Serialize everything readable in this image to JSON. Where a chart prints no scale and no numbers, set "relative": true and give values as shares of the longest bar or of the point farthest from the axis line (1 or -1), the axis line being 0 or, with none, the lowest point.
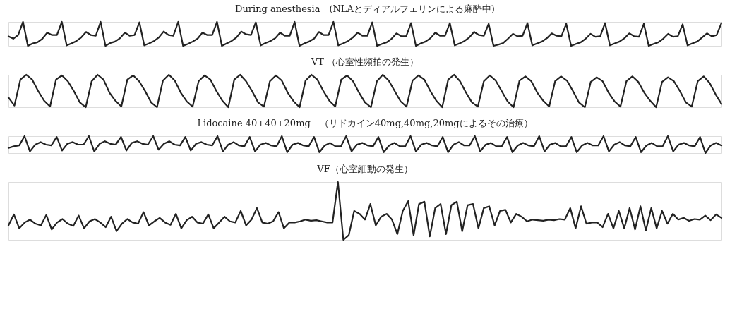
{
  "chart_data": [
    {
      "type": "line",
      "title": "During anesthesia　(NLAとディアルフェリンによる麻酔中)",
      "relative": true,
      "categories": [
        null,
        null,
        null,
        null,
        null,
        null,
        null,
        null,
        null,
        null,
        null,
        null,
        null,
        null,
        null,
        null,
        null,
        null,
        null,
        null,
        null,
        null,
        null,
        null,
        null,
        null,
        null,
        null,
        null,
        null,
        null,
        null,
        null,
        null,
        null,
        null,
        null,
        null,
        null,
        null,
        null,
        null,
        null,
        null,
        null,
        null,
        null,
        null,
        null,
        null,
        null,
        null,
        null,
        null,
        null,
        null,
        null,
        null,
        null,
        null,
        null,
        null,
        null,
        null,
        null,
        null,
        null,
        null,
        null,
        null,
        null,
        null,
        null,
        null,
        null,
        null,
        null,
        null,
        null,
        null,
        null,
        null,
        null,
        null,
        null,
        null,
        null,
        null,
        null,
        null,
        null,
        null,
        null,
        null,
        null,
        null,
        null,
        null,
        null,
        null,
        null,
        null,
        null,
        null,
        null,
        null,
        null,
        null,
        null,
        null,
        null,
        null,
        null,
        null,
        null,
        null,
        null,
        null,
        null,
        null,
        null,
        null,
        null,
        null,
        null,
        null,
        null,
        null,
        null,
        null,
        null,
        null,
        null,
        null,
        null,
        null,
        null,
        null,
        null,
        null,
        null,
        null,
        null,
        null,
        null,
        null,
        null,
        null
      ],
      "series": [
        {
          "color": "#222222",
          "values": [
            0.4,
            0.3,
            0.45,
            1.0,
            0.0,
            0.1,
            0.15,
            0.3,
            0.55,
            0.45,
            0.45,
            1.0,
            0.02,
            0.1,
            0.2,
            0.35,
            0.58,
            0.45,
            0.42,
            1.0,
            0.0,
            0.12,
            0.18,
            0.32,
            0.55,
            0.42,
            0.45,
            0.98,
            0.02,
            0.1,
            0.2,
            0.35,
            0.6,
            0.45,
            0.42,
            1.0,
            0.0,
            0.08,
            0.18,
            0.3,
            0.55,
            0.45,
            0.45,
            1.0,
            0.0,
            0.1,
            0.2,
            0.35,
            0.6,
            0.48,
            0.45,
            0.98,
            0.02,
            0.12,
            0.2,
            0.32,
            0.55,
            0.42,
            0.42,
            1.0,
            0.0,
            0.1,
            0.18,
            0.3,
            0.58,
            0.45,
            0.45,
            1.0,
            0.02,
            0.1,
            0.2,
            0.35,
            0.55,
            0.42,
            0.42,
            0.98,
            0.0,
            0.08,
            0.15,
            0.3,
            0.52,
            0.4,
            0.4,
            0.95,
            0.0,
            0.1,
            0.18,
            0.32,
            0.55,
            0.42,
            0.42,
            0.95,
            0.02,
            0.1,
            0.2,
            0.35,
            0.58,
            0.45,
            0.42,
            0.92,
            0.0,
            0.05,
            0.12,
            0.3,
            0.5,
            0.4,
            0.42,
            0.95,
            0.02,
            0.1,
            0.18,
            0.32,
            0.52,
            0.42,
            0.4,
            0.92,
            0.0,
            0.08,
            0.15,
            0.3,
            0.5,
            0.38,
            0.4,
            0.95,
            0.02,
            0.1,
            0.18,
            0.32,
            0.52,
            0.4,
            0.38,
            0.92,
            0.0,
            0.08,
            0.15,
            0.3,
            0.5,
            0.38,
            0.4,
            0.9,
            0.02,
            0.1,
            0.18,
            0.35,
            0.52,
            0.4,
            0.45,
            0.95
          ]
        }
      ]
    },
    {
      "type": "line",
      "title": "VT （心室性頻拍の発生）",
      "relative": true,
      "categories": [
        null,
        null,
        null,
        null,
        null,
        null,
        null,
        null,
        null,
        null,
        null,
        null,
        null,
        null,
        null,
        null,
        null,
        null,
        null,
        null,
        null,
        null,
        null,
        null,
        null,
        null,
        null,
        null,
        null,
        null,
        null,
        null,
        null,
        null,
        null,
        null,
        null,
        null,
        null,
        null,
        null,
        null,
        null,
        null,
        null,
        null,
        null,
        null,
        null,
        null,
        null,
        null,
        null,
        null,
        null,
        null,
        null,
        null,
        null,
        null,
        null,
        null,
        null,
        null,
        null,
        null,
        null,
        null,
        null,
        null,
        null,
        null,
        null,
        null,
        null,
        null,
        null,
        null,
        null,
        null,
        null,
        null,
        null,
        null,
        null,
        null,
        null,
        null,
        null,
        null,
        null,
        null,
        null,
        null,
        null,
        null,
        null,
        null,
        null,
        null,
        null,
        null,
        null,
        null,
        null,
        null,
        null,
        null,
        null,
        null,
        null,
        null,
        null,
        null,
        null,
        null,
        null,
        null,
        null,
        null,
        null
      ],
      "series": [
        {
          "color": "#222222",
          "values": [
            0.3,
            0.05,
            0.85,
            1.0,
            0.85,
            0.5,
            0.2,
            0.02,
            0.85,
            0.98,
            0.8,
            0.5,
            0.15,
            0.0,
            0.8,
            1.0,
            0.85,
            0.45,
            0.2,
            0.02,
            0.85,
            0.98,
            0.8,
            0.5,
            0.15,
            0.0,
            0.82,
            1.0,
            0.82,
            0.45,
            0.18,
            0.02,
            0.8,
            0.98,
            0.85,
            0.5,
            0.2,
            0.0,
            0.85,
            1.0,
            0.8,
            0.5,
            0.15,
            0.02,
            0.8,
            0.98,
            0.82,
            0.45,
            0.18,
            0.0,
            0.82,
            1.0,
            0.85,
            0.5,
            0.2,
            0.02,
            0.85,
            0.98,
            0.8,
            0.45,
            0.15,
            0.0,
            0.8,
            1.0,
            0.82,
            0.5,
            0.18,
            0.02,
            0.82,
            0.98,
            0.85,
            0.5,
            0.2,
            0.0,
            0.85,
            1.0,
            0.8,
            0.45,
            0.15,
            0.02,
            0.8,
            0.98,
            0.82,
            0.5,
            0.18,
            0.0,
            0.82,
            0.95,
            0.8,
            0.45,
            0.2,
            0.02,
            0.8,
            0.95,
            0.82,
            0.5,
            0.15,
            0.0,
            0.78,
            0.92,
            0.8,
            0.45,
            0.18,
            0.02,
            0.8,
            0.95,
            0.78,
            0.45,
            0.2,
            0.0,
            0.78,
            0.92,
            0.8,
            0.5,
            0.15,
            0.02,
            0.8,
            0.95,
            0.75,
            0.4,
            0.1
          ]
        }
      ]
    },
    {
      "type": "line",
      "title": "Lidocaine 40+40+20mg　（リドカイン40mg,40mg,20mgによるその治療）",
      "relative": true,
      "categories": [
        null,
        null,
        null,
        null,
        null,
        null,
        null,
        null,
        null,
        null,
        null,
        null,
        null,
        null,
        null,
        null,
        null,
        null,
        null,
        null,
        null,
        null,
        null,
        null,
        null,
        null,
        null,
        null,
        null,
        null,
        null,
        null,
        null,
        null,
        null,
        null,
        null,
        null,
        null,
        null,
        null,
        null,
        null,
        null,
        null,
        null,
        null,
        null,
        null,
        null,
        null,
        null,
        null,
        null,
        null,
        null,
        null,
        null,
        null,
        null,
        null,
        null,
        null,
        null,
        null,
        null,
        null,
        null,
        null,
        null,
        null,
        null,
        null,
        null,
        null,
        null,
        null,
        null,
        null,
        null,
        null,
        null,
        null,
        null,
        null,
        null,
        null,
        null,
        null,
        null,
        null,
        null,
        null,
        null,
        null,
        null,
        null,
        null,
        null,
        null,
        null,
        null,
        null,
        null,
        null,
        null,
        null,
        null,
        null,
        null,
        null,
        null,
        null,
        null,
        null,
        null,
        null,
        null,
        null,
        null,
        null,
        null,
        null,
        null,
        null,
        null,
        null,
        null,
        null,
        null,
        null,
        null,
        null,
        null
      ],
      "series": [
        {
          "color": "#222222",
          "values": [
            0.3,
            0.4,
            0.45,
            1.0,
            0.1,
            0.5,
            0.65,
            0.5,
            0.45,
            0.95,
            0.15,
            0.55,
            0.65,
            0.5,
            0.5,
            1.0,
            0.1,
            0.55,
            0.7,
            0.55,
            0.5,
            0.95,
            0.15,
            0.6,
            0.7,
            0.55,
            0.5,
            1.0,
            0.2,
            0.55,
            0.7,
            0.5,
            0.45,
            0.95,
            0.15,
            0.55,
            0.65,
            0.5,
            0.45,
            1.0,
            0.1,
            0.5,
            0.65,
            0.45,
            0.4,
            0.95,
            0.1,
            0.5,
            0.6,
            0.45,
            0.4,
            1.0,
            0.05,
            0.5,
            0.6,
            0.45,
            0.4,
            0.95,
            0.05,
            0.45,
            0.6,
            0.4,
            0.4,
            1.0,
            0.1,
            0.5,
            0.6,
            0.45,
            0.4,
            0.95,
            0.05,
            0.45,
            0.6,
            0.4,
            0.4,
            1.0,
            0.1,
            0.5,
            0.6,
            0.45,
            0.4,
            0.95,
            0.05,
            0.5,
            0.65,
            0.45,
            0.45,
            1.0,
            0.1,
            0.5,
            0.6,
            0.4,
            0.4,
            0.95,
            0.05,
            0.45,
            0.6,
            0.45,
            0.4,
            1.0,
            0.1,
            0.5,
            0.6,
            0.4,
            0.4,
            0.95,
            0.05,
            0.45,
            0.6,
            0.45,
            0.45,
            1.0,
            0.1,
            0.5,
            0.65,
            0.45,
            0.4,
            0.95,
            0.05,
            0.45,
            0.6,
            0.4,
            0.4,
            1.0,
            0.1,
            0.5,
            0.6,
            0.45,
            0.4,
            0.95,
            0.0,
            0.45,
            0.6,
            0.45
          ]
        }
      ]
    },
    {
      "type": "line",
      "title": "VF（心室細動の発生）",
      "relative": true,
      "categories": [
        null,
        null,
        null,
        null,
        null,
        null,
        null,
        null,
        null,
        null,
        null,
        null,
        null,
        null,
        null,
        null,
        null,
        null,
        null,
        null,
        null,
        null,
        null,
        null,
        null,
        null,
        null,
        null,
        null,
        null,
        null,
        null,
        null,
        null,
        null,
        null,
        null,
        null,
        null,
        null,
        null,
        null,
        null,
        null,
        null,
        null,
        null,
        null,
        null,
        null,
        null,
        null,
        null,
        null,
        null,
        null,
        null,
        null,
        null,
        null,
        null,
        null,
        null,
        null,
        null,
        null,
        null,
        null,
        null,
        null,
        null,
        null,
        null,
        null,
        null,
        null,
        null,
        null,
        null,
        null,
        null,
        null,
        null,
        null,
        null,
        null,
        null,
        null,
        null,
        null,
        null,
        null,
        null,
        null,
        null,
        null,
        null,
        null,
        null,
        null,
        null,
        null,
        null,
        null,
        null,
        null,
        null,
        null,
        null,
        null,
        null,
        null,
        null,
        null,
        null,
        null,
        null,
        null,
        null,
        null,
        null,
        null,
        null,
        null,
        null,
        null,
        null,
        null,
        null,
        null,
        null,
        null,
        null
      ],
      "series": [
        {
          "color": "#222222",
          "values": [
            0.25,
            0.44,
            0.2,
            0.3,
            0.35,
            0.28,
            0.25,
            0.43,
            0.18,
            0.3,
            0.36,
            0.28,
            0.24,
            0.42,
            0.2,
            0.32,
            0.36,
            0.3,
            0.22,
            0.4,
            0.15,
            0.28,
            0.36,
            0.3,
            0.28,
            0.48,
            0.25,
            0.32,
            0.38,
            0.3,
            0.26,
            0.45,
            0.2,
            0.34,
            0.4,
            0.3,
            0.28,
            0.44,
            0.2,
            0.3,
            0.4,
            0.32,
            0.3,
            0.5,
            0.25,
            0.35,
            0.55,
            0.3,
            0.28,
            0.32,
            0.48,
            0.2,
            0.3,
            0.3,
            0.32,
            0.35,
            0.33,
            0.34,
            0.32,
            0.3,
            0.3,
            1.0,
            0.0,
            0.08,
            0.5,
            0.45,
            0.35,
            0.62,
            0.25,
            0.4,
            0.45,
            0.35,
            0.1,
            0.5,
            0.67,
            0.08,
            0.62,
            0.66,
            0.06,
            0.55,
            0.62,
            0.1,
            0.6,
            0.66,
            0.15,
            0.6,
            0.62,
            0.2,
            0.55,
            0.58,
            0.25,
            0.5,
            0.52,
            0.3,
            0.45,
            0.4,
            0.32,
            0.35,
            0.34,
            0.33,
            0.35,
            0.34,
            0.36,
            0.35,
            0.55,
            0.2,
            0.58,
            0.28,
            0.3,
            0.3,
            0.22,
            0.45,
            0.2,
            0.5,
            0.2,
            0.55,
            0.18,
            0.58,
            0.16,
            0.55,
            0.2,
            0.5,
            0.28,
            0.45,
            0.35,
            0.38,
            0.33,
            0.36,
            0.35,
            0.42,
            0.34,
            0.44,
            0.38
          ]
        }
      ]
    }
  ]
}
